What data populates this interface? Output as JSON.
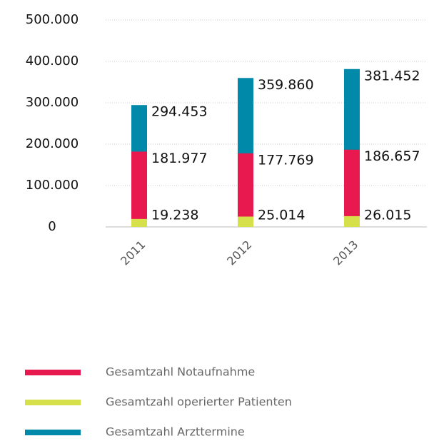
{
  "chart_data": {
    "type": "bar",
    "categories": [
      "2011",
      "2012",
      "2013"
    ],
    "series": [
      {
        "name": "Gesamtzahl Notaufnahme",
        "color": "#e8194f",
        "values": [
          181977,
          177769,
          186657
        ],
        "value_labels": [
          "181.977",
          "177.769",
          "186.657"
        ]
      },
      {
        "name": "Gesamtzahl operierter Patienten",
        "color": "#d6e04a",
        "values": [
          19238,
          25014,
          26015
        ],
        "value_labels": [
          "19.238",
          "25.014",
          "26.015"
        ]
      },
      {
        "name": "Gesamtzahl Arzttermine",
        "color": "#0089a8",
        "values": [
          294453,
          359860,
          381452
        ],
        "value_labels": [
          "294.453",
          "359.860",
          "381.452"
        ]
      }
    ],
    "ylim": [
      0,
      500000
    ],
    "yticks": [
      0,
      {
        "value": 100000,
        "label": "100.000"
      },
      {
        "value": 200000,
        "label": "200.000"
      },
      {
        "value": 300000,
        "label": "300.000"
      },
      {
        "value": 400000,
        "label": "400.000"
      },
      {
        "value": 500000,
        "label": "500.000"
      }
    ],
    "grid": true
  }
}
